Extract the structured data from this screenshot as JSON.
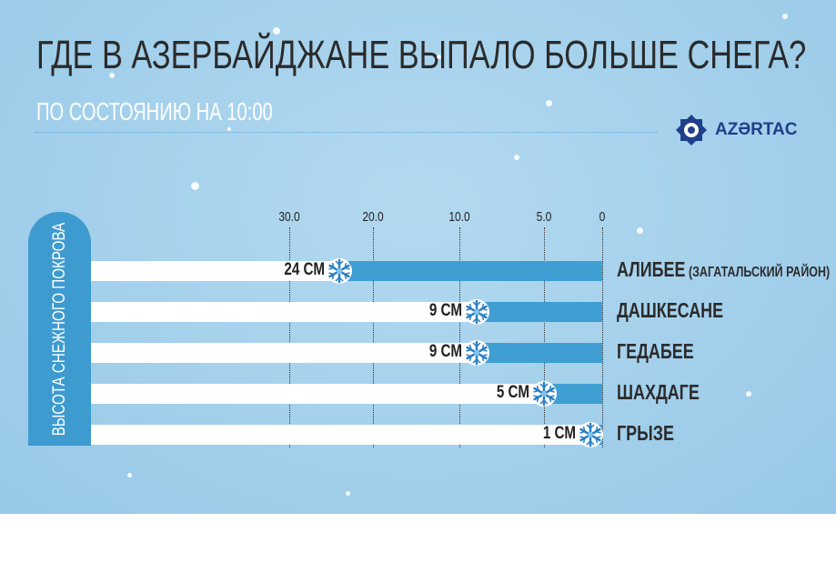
{
  "title": "ГДЕ В АЗЕРБАЙДЖАНЕ ВЫПАЛО БОЛЬШЕ СНЕГА?",
  "subtitle": "ПО СОСТОЯНИЮ НА 10:00",
  "logo": "AZƏRTAC",
  "colors": {
    "background": "#9fcdea",
    "bar": "#3f9fd3",
    "track": "#ffffff",
    "label_box": "#3d9bd0"
  },
  "chart_data": {
    "type": "bar",
    "orientation": "horizontal",
    "direction": "right-to-left",
    "ylabel": "ВЫСОТА СНЕЖНОГО ПОКРОВА",
    "ticks": [
      "30.0",
      "20.0",
      "10.0",
      "5.0",
      "0"
    ],
    "tick_values": [
      30,
      20,
      10,
      5,
      0
    ],
    "grid": true,
    "categories": [
      {
        "name": "АЛИБЕЕ",
        "note": "(ЗАГАТАЛЬСКИЙ РАЙОН)"
      },
      {
        "name": "ДАШКЕСАНЕ",
        "note": ""
      },
      {
        "name": "ГЕДАБЕЕ",
        "note": ""
      },
      {
        "name": "ШАХДАГЕ",
        "note": ""
      },
      {
        "name": "ГРЫЗЕ",
        "note": ""
      }
    ],
    "values": [
      24,
      9,
      9,
      5,
      1
    ],
    "value_labels": [
      "24 СМ",
      "9 СМ",
      "9 СМ",
      "5 СМ",
      "1 СМ"
    ],
    "marker_icon": "snowflake-icon"
  }
}
